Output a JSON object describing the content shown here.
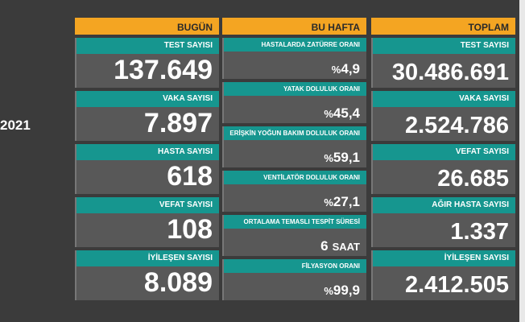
{
  "side_text": "2021",
  "columns": [
    {
      "title": "BUGÜN",
      "cards": [
        {
          "label": "TEST SAYISI",
          "value": "137.649"
        },
        {
          "label": "VAKA SAYISI",
          "value": "7.897"
        },
        {
          "label": "HASTA SAYISI",
          "value": "618"
        },
        {
          "label": "VEFAT SAYISI",
          "value": "108"
        },
        {
          "label": "İYİLEŞEN SAYISI",
          "value": "8.089"
        }
      ]
    },
    {
      "title": "BU HAFTA",
      "cards": [
        {
          "label": "HASTALARDA ZATÜRRE ORANI",
          "prefix": "%",
          "value": "4,9"
        },
        {
          "label": "YATAK DOLULUK ORANI",
          "prefix": "%",
          "value": "45,4"
        },
        {
          "label": "ERİŞKİN YOĞUN BAKIM DOLULUK ORANI",
          "prefix": "%",
          "value": "59,1"
        },
        {
          "label": "VENTİLATÖR DOLULUK ORANI",
          "prefix": "%",
          "value": "27,1"
        },
        {
          "label": "ORTALAMA TEMASLI TESPİT SÜRESİ",
          "value": "6",
          "suffix": "SAAT"
        },
        {
          "label": "FİLYASYON ORANI",
          "prefix": "%",
          "value": "99,9"
        }
      ]
    },
    {
      "title": "TOPLAM",
      "cards": [
        {
          "label": "TEST SAYISI",
          "value": "30.486.691"
        },
        {
          "label": "VAKA SAYISI",
          "value": "2.524.786"
        },
        {
          "label": "VEFAT SAYISI",
          "value": "26.685"
        },
        {
          "label": "AĞIR HASTA SAYISI",
          "value": "1.337"
        },
        {
          "label": "İYİLEŞEN SAYISI",
          "value": "2.412.505"
        }
      ]
    }
  ]
}
